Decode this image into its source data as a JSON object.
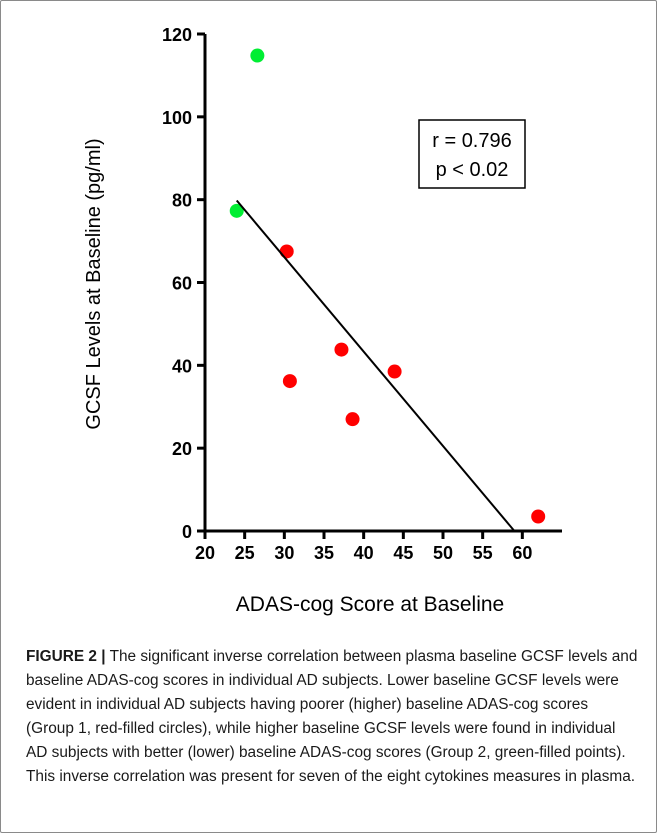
{
  "chart_data": {
    "type": "scatter",
    "xlabel": "ADAS-cog Score at Baseline",
    "ylabel": "GCSF Levels at Baseline (pg/ml)",
    "xlim": [
      20,
      65
    ],
    "ylim": [
      0,
      120
    ],
    "xticks": [
      "20",
      "25",
      "30",
      "35",
      "40",
      "45",
      "50",
      "55",
      "60"
    ],
    "yticks": [
      "0",
      "20",
      "40",
      "60",
      "80",
      "100",
      "120"
    ],
    "series": [
      {
        "color": "#ff0000",
        "points": [
          {
            "x": 30.3,
            "y": 67.5
          },
          {
            "x": 30.7,
            "y": 36.2
          },
          {
            "x": 37.2,
            "y": 43.8
          },
          {
            "x": 38.6,
            "y": 27.0
          },
          {
            "x": 43.9,
            "y": 38.5
          },
          {
            "x": 62.0,
            "y": 3.5
          }
        ]
      },
      {
        "color": "#00ee33",
        "points": [
          {
            "x": 26.6,
            "y": 114.8
          },
          {
            "x": 24.0,
            "y": 77.3
          }
        ]
      }
    ],
    "regression_line": {
      "x1": 24.0,
      "y1": 79.8,
      "x2": 59.0,
      "y2": 0
    },
    "annotation": [
      "r = 0.796",
      "p < 0.02"
    ],
    "grid": false
  },
  "caption": {
    "lead": "FIGURE 2 |",
    "text": "The significant inverse correlation between plasma baseline GCSF levels and baseline ADAS-cog scores in individual AD subjects. Lower baseline GCSF levels were evident in individual AD subjects having poorer (higher) baseline ADAS-cog scores (Group 1, red-filled circles), while higher baseline GCSF levels were found in individual AD subjects with better (lower) baseline ADAS-cog scores (Group 2, green-filled points). This inverse correlation was present for seven of the eight cytokines measures in plasma."
  }
}
